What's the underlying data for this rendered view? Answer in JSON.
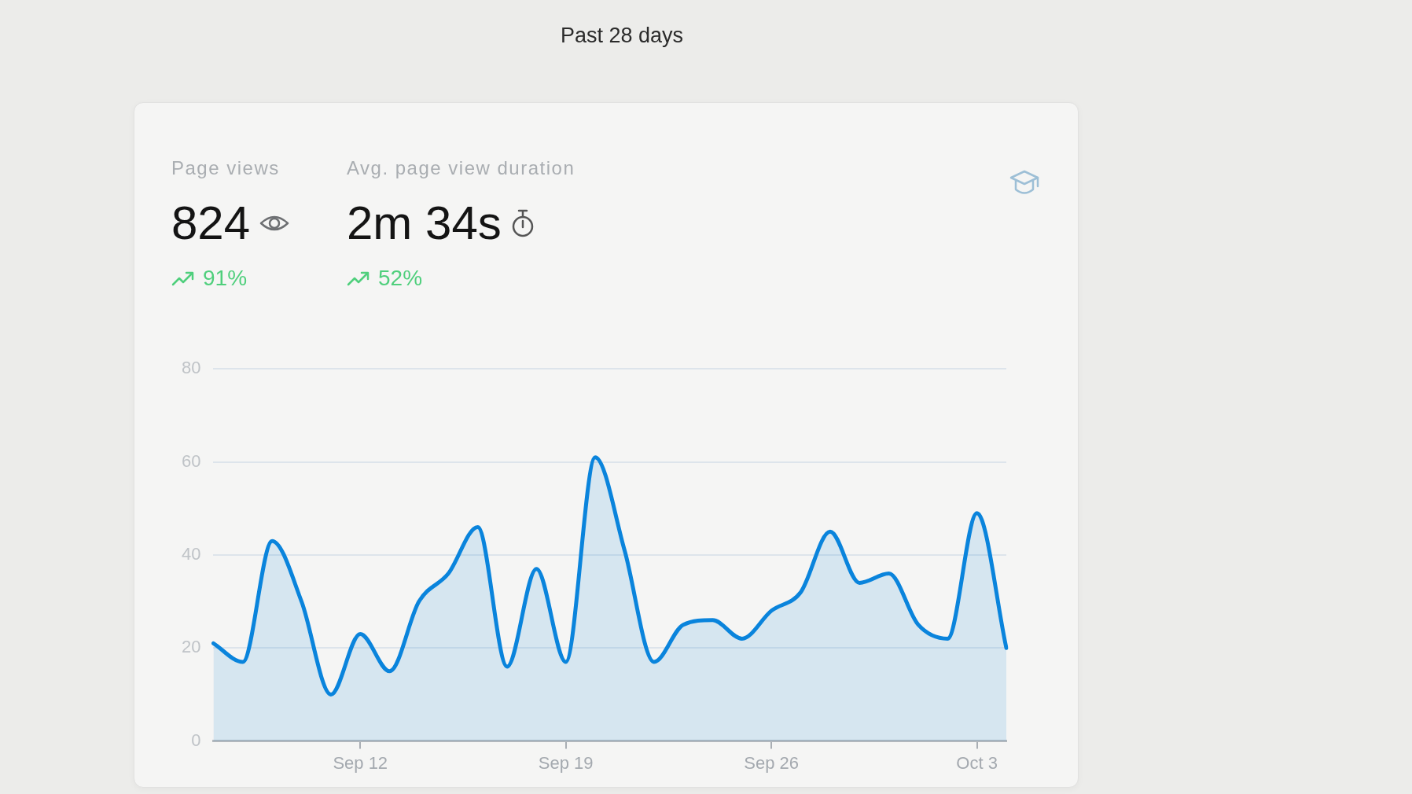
{
  "chart_data": {
    "type": "area",
    "title": "Past 28 days",
    "annotations": [
      "Page views",
      "824",
      "91%",
      "Avg. page view duration",
      "2m 34s",
      "52%"
    ],
    "categories": [
      null,
      null,
      null,
      null,
      null,
      "Sep 12",
      null,
      null,
      null,
      null,
      null,
      null,
      "Sep 19",
      null,
      null,
      null,
      null,
      null,
      null,
      "Sep 26",
      null,
      null,
      null,
      null,
      null,
      null,
      "Oct 3",
      null
    ],
    "values": [
      21,
      17,
      43,
      30,
      10,
      23,
      15,
      30,
      36,
      46,
      16,
      37,
      17,
      61,
      41,
      17,
      25,
      26,
      22,
      28,
      32,
      45,
      34,
      36,
      25,
      22,
      49,
      20
    ],
    "color": "#0a84dc",
    "ylim": [
      0,
      80
    ],
    "yticks": [
      0,
      20,
      40,
      60,
      80
    ],
    "grid": "y",
    "marker": "none"
  }
}
